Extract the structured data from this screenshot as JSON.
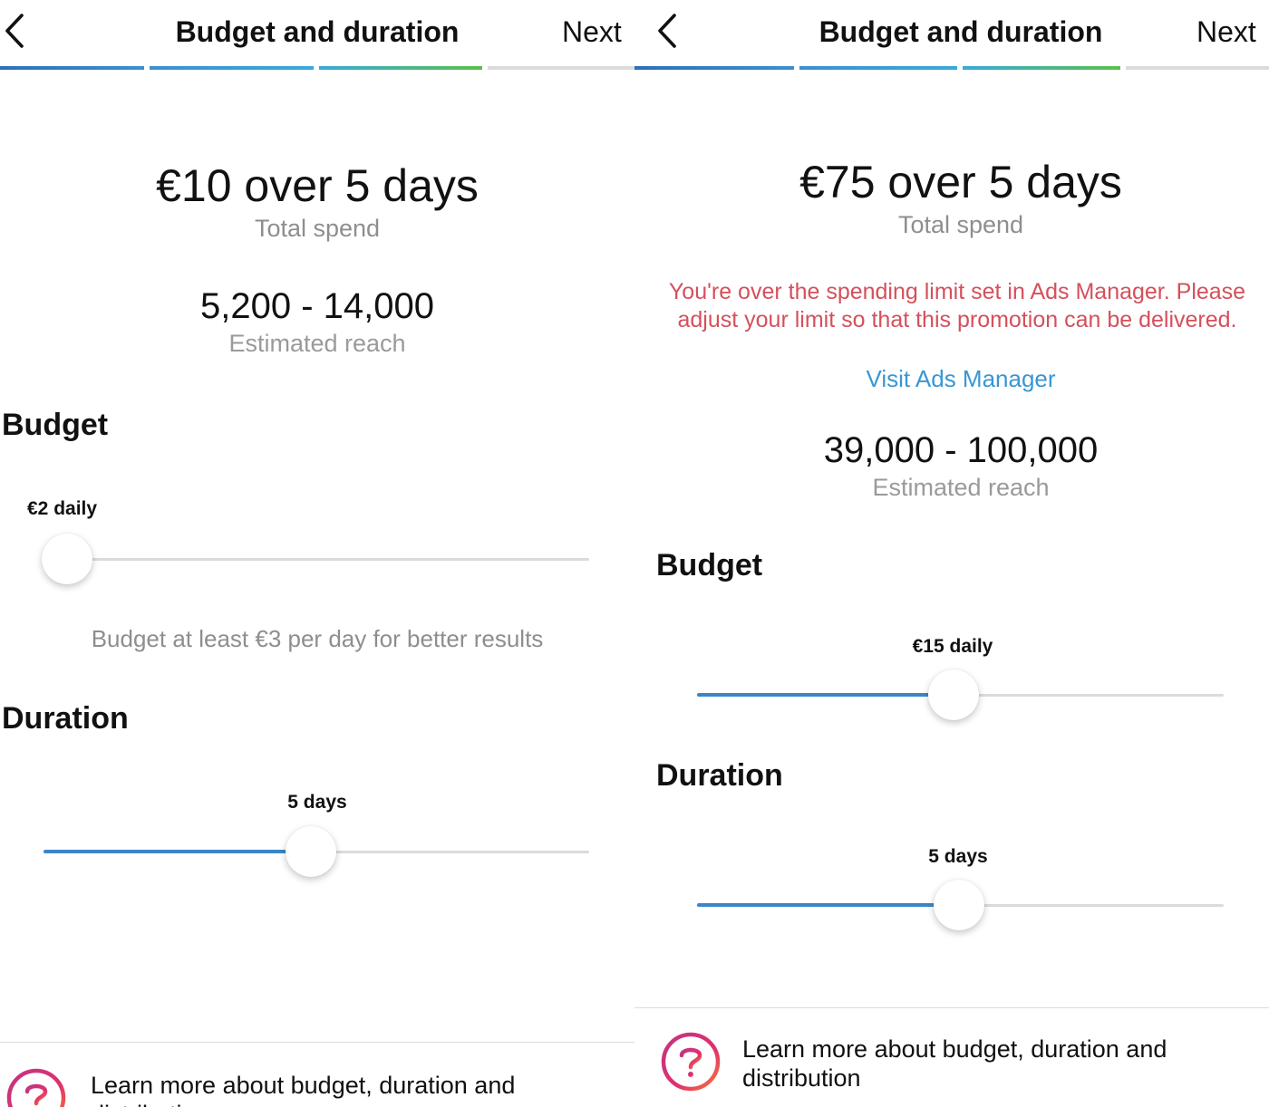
{
  "left": {
    "nav": {
      "title": "Budget and duration",
      "next_label": "Next"
    },
    "progress": {
      "total_steps": 4,
      "completed_steps": 3
    },
    "summary": {
      "total_value": "€10 over 5 days",
      "total_label": "Total spend",
      "reach_value": "5,200 - 14,000",
      "reach_label": "Estimated reach"
    },
    "budget": {
      "heading": "Budget",
      "value_label": "€2 daily",
      "slider_fraction": 0.04,
      "hint": "Budget at least €3 per day for better results"
    },
    "duration": {
      "heading": "Duration",
      "value_label": "5 days",
      "slider_fraction": 0.49
    },
    "footer": {
      "help_text": "Learn more about budget, duration and distribution"
    }
  },
  "right": {
    "nav": {
      "title": "Budget and duration",
      "next_label": "Next"
    },
    "progress": {
      "total_steps": 4,
      "completed_steps": 3
    },
    "summary": {
      "total_value": "€75 over 5 days",
      "total_label": "Total spend",
      "warning": "You're over the spending limit set in Ads Manager. Please adjust your limit so that this promotion can be delivered.",
      "link": "Visit Ads Manager",
      "reach_value": "39,000 - 100,000",
      "reach_label": "Estimated reach"
    },
    "budget": {
      "heading": "Budget",
      "value_label": "€15 daily",
      "slider_fraction": 0.487
    },
    "duration": {
      "heading": "Duration",
      "value_label": "5 days",
      "slider_fraction": 0.497
    },
    "footer": {
      "help_text": "Learn more about budget, duration and distribution"
    }
  },
  "colors": {
    "accent_blue": "#3a86c8",
    "warning_red": "#d4505c",
    "link_blue": "#3897d3",
    "progress_gradient": [
      "#2e6fb8",
      "#3aa0d8",
      "#5bbf4a"
    ],
    "progress_track": "#dbdbdb",
    "icon_gradient": [
      "#c13584",
      "#e1306c",
      "#f77737"
    ]
  },
  "icons": {
    "back": "chevron-left-icon",
    "help": "question-mark-circle-icon"
  }
}
